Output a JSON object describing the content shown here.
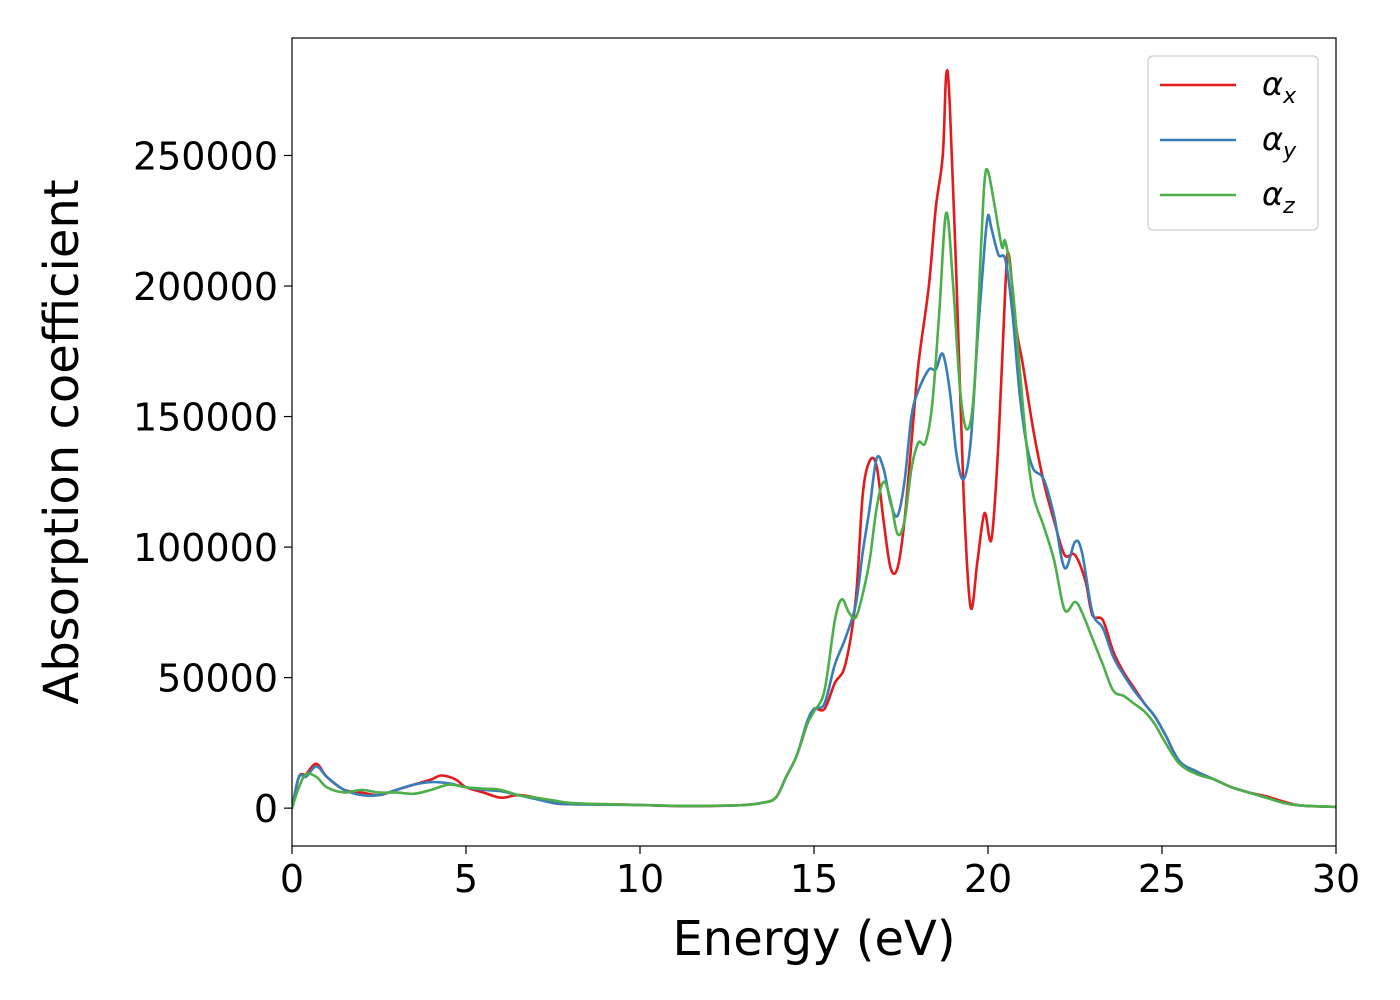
{
  "chart_data": {
    "type": "line",
    "title": "",
    "xlabel": "Energy (eV)",
    "ylabel": "Absorption coefficient",
    "xlim": [
      0,
      30
    ],
    "ylim": [
      -14500,
      295000
    ],
    "xticks": [
      0,
      5,
      10,
      15,
      20,
      25,
      30
    ],
    "yticks": [
      0,
      50000,
      100000,
      150000,
      200000,
      250000
    ],
    "grid": false,
    "legend_position": "top-right",
    "series": [
      {
        "name": "α_x",
        "legend_main": "α",
        "legend_sub": "x",
        "color": "#e41a1c",
        "points": [
          [
            0,
            0
          ],
          [
            0.2,
            12000
          ],
          [
            0.4,
            13000
          ],
          [
            0.7,
            17000
          ],
          [
            1.0,
            12000
          ],
          [
            1.5,
            7000
          ],
          [
            2.0,
            6000
          ],
          [
            2.5,
            5000
          ],
          [
            3.0,
            7000
          ],
          [
            3.5,
            9000
          ],
          [
            4.0,
            11000
          ],
          [
            4.3,
            12500
          ],
          [
            4.7,
            11000
          ],
          [
            5.0,
            8000
          ],
          [
            5.5,
            6000
          ],
          [
            6.0,
            4000
          ],
          [
            6.5,
            5000
          ],
          [
            7.0,
            4000
          ],
          [
            7.5,
            2000
          ],
          [
            8.0,
            1500
          ],
          [
            9.0,
            1500
          ],
          [
            10.0,
            1200
          ],
          [
            11.0,
            800
          ],
          [
            12.0,
            800
          ],
          [
            13.0,
            1200
          ],
          [
            13.5,
            2000
          ],
          [
            13.9,
            4000
          ],
          [
            14.2,
            12000
          ],
          [
            14.5,
            20000
          ],
          [
            14.8,
            32000
          ],
          [
            15.0,
            38000
          ],
          [
            15.3,
            38000
          ],
          [
            15.6,
            48000
          ],
          [
            15.9,
            55000
          ],
          [
            16.2,
            80000
          ],
          [
            16.4,
            120000
          ],
          [
            16.6,
            133000
          ],
          [
            16.8,
            131000
          ],
          [
            17.0,
            110000
          ],
          [
            17.2,
            92000
          ],
          [
            17.4,
            92000
          ],
          [
            17.6,
            110000
          ],
          [
            17.8,
            140000
          ],
          [
            18.0,
            170000
          ],
          [
            18.3,
            200000
          ],
          [
            18.5,
            230000
          ],
          [
            18.7,
            250000
          ],
          [
            18.8,
            281000
          ],
          [
            18.9,
            270000
          ],
          [
            19.1,
            200000
          ],
          [
            19.3,
            120000
          ],
          [
            19.5,
            77000
          ],
          [
            19.7,
            95000
          ],
          [
            19.9,
            113000
          ],
          [
            20.1,
            103000
          ],
          [
            20.3,
            140000
          ],
          [
            20.5,
            200000
          ],
          [
            20.6,
            212000
          ],
          [
            20.8,
            185000
          ],
          [
            21.0,
            170000
          ],
          [
            21.3,
            145000
          ],
          [
            21.6,
            125000
          ],
          [
            21.9,
            110000
          ],
          [
            22.2,
            97000
          ],
          [
            22.5,
            97000
          ],
          [
            22.8,
            87000
          ],
          [
            23.0,
            74000
          ],
          [
            23.3,
            72000
          ],
          [
            23.6,
            60000
          ],
          [
            23.9,
            52000
          ],
          [
            24.2,
            46000
          ],
          [
            24.5,
            40000
          ],
          [
            24.8,
            35000
          ],
          [
            25.1,
            28000
          ],
          [
            25.5,
            18000
          ],
          [
            26.0,
            14000
          ],
          [
            26.5,
            11000
          ],
          [
            27.0,
            8000
          ],
          [
            27.5,
            6000
          ],
          [
            28.0,
            4500
          ],
          [
            28.5,
            2500
          ],
          [
            29.0,
            1000
          ],
          [
            30.0,
            500
          ]
        ]
      },
      {
        "name": "α_y",
        "legend_main": "α",
        "legend_sub": "y",
        "color": "#377eb8",
        "points": [
          [
            0,
            0
          ],
          [
            0.2,
            12000
          ],
          [
            0.4,
            12000
          ],
          [
            0.7,
            16000
          ],
          [
            1.0,
            12000
          ],
          [
            1.5,
            7000
          ],
          [
            2.0,
            5000
          ],
          [
            2.5,
            5000
          ],
          [
            3.0,
            7000
          ],
          [
            3.5,
            9000
          ],
          [
            4.0,
            10000
          ],
          [
            4.5,
            9500
          ],
          [
            5.0,
            8000
          ],
          [
            5.5,
            7000
          ],
          [
            6.0,
            6500
          ],
          [
            6.5,
            5000
          ],
          [
            7.0,
            3500
          ],
          [
            7.5,
            2000
          ],
          [
            8.0,
            1500
          ],
          [
            9.0,
            1300
          ],
          [
            10.0,
            1200
          ],
          [
            11.0,
            900
          ],
          [
            12.0,
            900
          ],
          [
            13.0,
            1200
          ],
          [
            13.5,
            2000
          ],
          [
            13.9,
            4000
          ],
          [
            14.2,
            12000
          ],
          [
            14.5,
            20000
          ],
          [
            14.8,
            33000
          ],
          [
            15.0,
            38000
          ],
          [
            15.3,
            40000
          ],
          [
            15.6,
            55000
          ],
          [
            15.9,
            65000
          ],
          [
            16.2,
            78000
          ],
          [
            16.4,
            98000
          ],
          [
            16.6,
            115000
          ],
          [
            16.8,
            134000
          ],
          [
            17.0,
            130000
          ],
          [
            17.2,
            117000
          ],
          [
            17.4,
            112000
          ],
          [
            17.6,
            125000
          ],
          [
            17.8,
            150000
          ],
          [
            18.0,
            160000
          ],
          [
            18.3,
            168000
          ],
          [
            18.5,
            168000
          ],
          [
            18.7,
            174000
          ],
          [
            18.9,
            160000
          ],
          [
            19.1,
            135000
          ],
          [
            19.3,
            126000
          ],
          [
            19.5,
            140000
          ],
          [
            19.7,
            180000
          ],
          [
            19.9,
            215000
          ],
          [
            20.0,
            227000
          ],
          [
            20.1,
            222000
          ],
          [
            20.3,
            212000
          ],
          [
            20.5,
            210000
          ],
          [
            20.7,
            190000
          ],
          [
            20.9,
            160000
          ],
          [
            21.1,
            140000
          ],
          [
            21.3,
            130000
          ],
          [
            21.6,
            126000
          ],
          [
            21.9,
            112000
          ],
          [
            22.2,
            92000
          ],
          [
            22.5,
            102000
          ],
          [
            22.7,
            98000
          ],
          [
            23.0,
            75000
          ],
          [
            23.3,
            69000
          ],
          [
            23.6,
            58000
          ],
          [
            23.9,
            51000
          ],
          [
            24.2,
            45000
          ],
          [
            24.5,
            40000
          ],
          [
            24.8,
            35000
          ],
          [
            25.1,
            28000
          ],
          [
            25.5,
            18000
          ],
          [
            26.0,
            14000
          ],
          [
            26.5,
            11000
          ],
          [
            27.0,
            8000
          ],
          [
            27.5,
            6000
          ],
          [
            28.0,
            4000
          ],
          [
            28.5,
            2000
          ],
          [
            29.0,
            1000
          ],
          [
            30.0,
            500
          ]
        ]
      },
      {
        "name": "α_z",
        "legend_main": "α",
        "legend_sub": "z",
        "color": "#4daf4a",
        "points": [
          [
            0,
            0
          ],
          [
            0.2,
            8000
          ],
          [
            0.4,
            13000
          ],
          [
            0.7,
            12000
          ],
          [
            1.0,
            8000
          ],
          [
            1.5,
            6000
          ],
          [
            2.0,
            7000
          ],
          [
            2.5,
            6000
          ],
          [
            3.0,
            6000
          ],
          [
            3.5,
            5500
          ],
          [
            4.0,
            7000
          ],
          [
            4.5,
            9000
          ],
          [
            5.0,
            8000
          ],
          [
            5.5,
            7500
          ],
          [
            6.0,
            7000
          ],
          [
            6.5,
            5000
          ],
          [
            7.0,
            4000
          ],
          [
            7.5,
            3000
          ],
          [
            8.0,
            2000
          ],
          [
            9.0,
            1500
          ],
          [
            10.0,
            1200
          ],
          [
            11.0,
            900
          ],
          [
            12.0,
            900
          ],
          [
            13.0,
            1200
          ],
          [
            13.5,
            2000
          ],
          [
            13.9,
            4000
          ],
          [
            14.2,
            12000
          ],
          [
            14.5,
            20000
          ],
          [
            14.8,
            32000
          ],
          [
            15.0,
            37000
          ],
          [
            15.3,
            45000
          ],
          [
            15.6,
            72000
          ],
          [
            15.8,
            80000
          ],
          [
            16.0,
            75000
          ],
          [
            16.2,
            73000
          ],
          [
            16.4,
            82000
          ],
          [
            16.6,
            95000
          ],
          [
            16.8,
            115000
          ],
          [
            17.0,
            125000
          ],
          [
            17.2,
            118000
          ],
          [
            17.4,
            105000
          ],
          [
            17.6,
            110000
          ],
          [
            17.8,
            130000
          ],
          [
            18.0,
            140000
          ],
          [
            18.2,
            140000
          ],
          [
            18.4,
            155000
          ],
          [
            18.6,
            190000
          ],
          [
            18.8,
            228000
          ],
          [
            19.0,
            200000
          ],
          [
            19.2,
            160000
          ],
          [
            19.4,
            145000
          ],
          [
            19.6,
            160000
          ],
          [
            19.8,
            215000
          ],
          [
            19.9,
            240000
          ],
          [
            20.0,
            244000
          ],
          [
            20.2,
            230000
          ],
          [
            20.4,
            215000
          ],
          [
            20.5,
            217000
          ],
          [
            20.7,
            200000
          ],
          [
            20.9,
            170000
          ],
          [
            21.1,
            140000
          ],
          [
            21.3,
            120000
          ],
          [
            21.6,
            108000
          ],
          [
            21.9,
            95000
          ],
          [
            22.2,
            76000
          ],
          [
            22.5,
            79000
          ],
          [
            22.7,
            75000
          ],
          [
            23.0,
            65000
          ],
          [
            23.3,
            55000
          ],
          [
            23.6,
            45000
          ],
          [
            23.9,
            43000
          ],
          [
            24.2,
            40000
          ],
          [
            24.5,
            37000
          ],
          [
            24.8,
            32000
          ],
          [
            25.1,
            25000
          ],
          [
            25.5,
            17000
          ],
          [
            26.0,
            13000
          ],
          [
            26.5,
            11000
          ],
          [
            27.0,
            8000
          ],
          [
            27.5,
            6000
          ],
          [
            28.0,
            4000
          ],
          [
            28.5,
            2000
          ],
          [
            29.0,
            1000
          ],
          [
            30.0,
            500
          ]
        ]
      }
    ]
  }
}
